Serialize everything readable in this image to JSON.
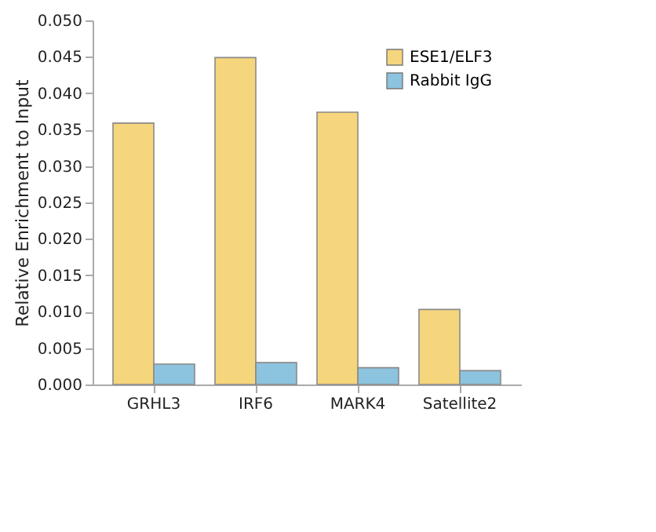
{
  "chart_data": {
    "type": "bar",
    "ylabel": "Relative Enrichment to Input",
    "categories": [
      "GRHL3",
      "IRF6",
      "MARK4",
      "Satellite2"
    ],
    "series": [
      {
        "name": "ESE1/ELF3",
        "color": "#f6d67c",
        "values": [
          0.0359,
          0.0449,
          0.0374,
          0.0103
        ]
      },
      {
        "name": "Rabbit IgG",
        "color": "#8cc3df",
        "values": [
          0.0028,
          0.003,
          0.0023,
          0.0019
        ]
      }
    ],
    "ylim": [
      0,
      0.05
    ],
    "yticks": [
      {
        "value": 0,
        "label": "0.000"
      },
      {
        "value": 0.005,
        "label": "0.005"
      },
      {
        "value": 0.01,
        "label": "0.010"
      },
      {
        "value": 0.015,
        "label": "0.015"
      },
      {
        "value": 0.02,
        "label": "0.020"
      },
      {
        "value": 0.025,
        "label": "0.025"
      },
      {
        "value": 0.03,
        "label": "0.030"
      },
      {
        "value": 0.035,
        "label": "0.035"
      },
      {
        "value": 0.04,
        "label": "0.040"
      },
      {
        "value": 0.045,
        "label": "0.045"
      },
      {
        "value": 0.05,
        "label": "0.050"
      }
    ],
    "grid": false,
    "legend": "top right"
  }
}
